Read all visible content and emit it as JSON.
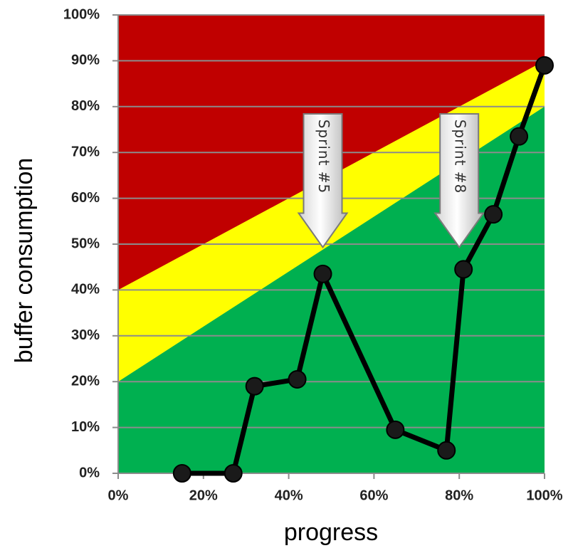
{
  "chart_data": {
    "type": "line",
    "xlabel": "progress",
    "ylabel": "buffer consumption",
    "xlim": [
      0,
      100
    ],
    "ylim": [
      0,
      100
    ],
    "x_ticks": [
      "0%",
      "20%",
      "40%",
      "60%",
      "80%",
      "100%"
    ],
    "y_ticks": [
      "0%",
      "10%",
      "20%",
      "30%",
      "40%",
      "50%",
      "60%",
      "70%",
      "80%",
      "90%",
      "100%"
    ],
    "grid": true,
    "zones": [
      {
        "name": "red",
        "color": "#c00000"
      },
      {
        "name": "yellow",
        "color": "#ffff00",
        "lower_at_0": 20,
        "upper_at_0": 40,
        "lower_at_100": 80,
        "upper_at_100": 90
      },
      {
        "name": "green",
        "color": "#00b050"
      }
    ],
    "series": [
      {
        "color": "#000000",
        "x": [
          15,
          27,
          32,
          42,
          48,
          65,
          77,
          81,
          88,
          94,
          100
        ],
        "y": [
          0,
          0,
          19,
          20.5,
          43.5,
          9.5,
          5,
          44.5,
          56.5,
          73.5,
          89
        ]
      }
    ],
    "annotations": [
      {
        "text": "Sprint #5",
        "x": 48,
        "y": 49
      },
      {
        "text": "Sprint #8",
        "x": 80,
        "y": 49
      }
    ]
  }
}
